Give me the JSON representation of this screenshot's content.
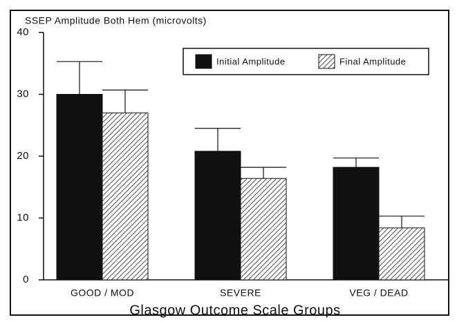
{
  "chart_data": {
    "type": "bar",
    "title": "SSEP Amplitude Both Hem (microvolts)",
    "xlabel": "Glasgow Outcome Scale Groups",
    "categories": [
      "GOOD / MOD",
      "SEVERE",
      "VEG / DEAD"
    ],
    "series": [
      {
        "name": "Initial Amplitude",
        "color": "#111111",
        "pattern": "solid",
        "values": [
          30.0,
          20.8,
          18.2
        ],
        "errors": [
          5.3,
          3.7,
          1.5
        ]
      },
      {
        "name": "Final Amplitude",
        "color": "#222222",
        "pattern": "hatch",
        "values": [
          27.0,
          16.4,
          8.4
        ],
        "errors": [
          3.7,
          1.8,
          1.9
        ]
      }
    ],
    "ylim": [
      0,
      40
    ],
    "yticks": [
      0,
      10,
      20,
      30,
      40
    ],
    "grid": false,
    "legend": "upper right"
  }
}
